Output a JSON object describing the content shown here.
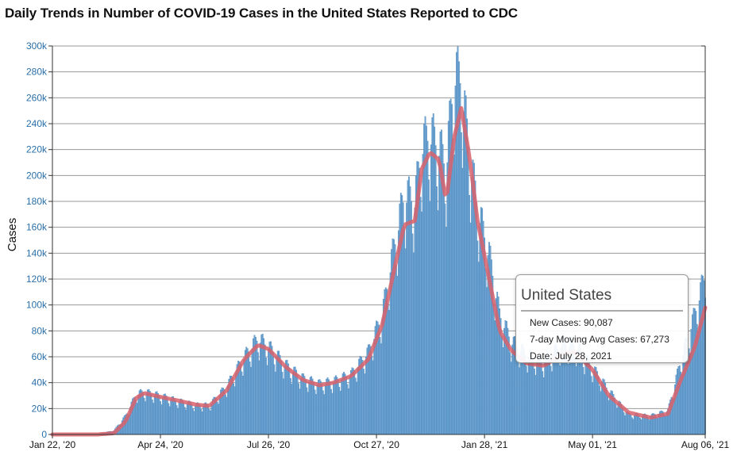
{
  "chart_data": {
    "type": "bar",
    "title": "Daily Trends in Number of COVID-19 Cases in the United States Reported to CDC",
    "ylabel": "Cases",
    "xlabel": "",
    "ylim": [
      0,
      300000
    ],
    "y_ticks": [
      {
        "value": 0,
        "label": "0"
      },
      {
        "value": 20000,
        "label": "20k"
      },
      {
        "value": 40000,
        "label": "40k"
      },
      {
        "value": 60000,
        "label": "60k"
      },
      {
        "value": 80000,
        "label": "80k"
      },
      {
        "value": 100000,
        "label": "100k"
      },
      {
        "value": 120000,
        "label": "120k"
      },
      {
        "value": 140000,
        "label": "140k"
      },
      {
        "value": 160000,
        "label": "160k"
      },
      {
        "value": 180000,
        "label": "180k"
      },
      {
        "value": 200000,
        "label": "200k"
      },
      {
        "value": 220000,
        "label": "220k"
      },
      {
        "value": 240000,
        "label": "240k"
      },
      {
        "value": 260000,
        "label": "260k"
      },
      {
        "value": 280000,
        "label": "280k"
      },
      {
        "value": 300000,
        "label": "300k"
      }
    ],
    "x_range": [
      "2020-01-22",
      "2021-08-06"
    ],
    "x_ticks": [
      {
        "date": "2020-01-22",
        "label": "Jan 22, '20"
      },
      {
        "date": "2020-04-24",
        "label": "Apr 24, '20"
      },
      {
        "date": "2020-07-26",
        "label": "Jul 26, '20"
      },
      {
        "date": "2020-10-27",
        "label": "Oct 27, '20"
      },
      {
        "date": "2021-01-28",
        "label": "Jan 28, '21"
      },
      {
        "date": "2021-05-01",
        "label": "May 01, '21"
      },
      {
        "date": "2021-08-06",
        "label": "Aug 06, '21"
      }
    ],
    "grid": true,
    "colors": {
      "bars": "#6ea4d2",
      "bars_edge": "#3f7fb8",
      "moving_avg": "#d9616b",
      "grid": "#999999"
    },
    "series": [
      {
        "name": "New Cases",
        "kind": "bar",
        "x": [
          "2020-01-22",
          "2020-03-01",
          "2020-03-15",
          "2020-03-25",
          "2020-04-03",
          "2020-04-10",
          "2020-04-24",
          "2020-05-10",
          "2020-05-25",
          "2020-06-05",
          "2020-06-20",
          "2020-07-05",
          "2020-07-17",
          "2020-07-26",
          "2020-08-10",
          "2020-08-25",
          "2020-09-08",
          "2020-09-20",
          "2020-10-05",
          "2020-10-20",
          "2020-11-01",
          "2020-11-10",
          "2020-11-20",
          "2020-11-29",
          "2020-12-05",
          "2020-12-12",
          "2020-12-20",
          "2020-12-26",
          "2021-01-02",
          "2021-01-08",
          "2021-01-15",
          "2021-01-22",
          "2021-02-01",
          "2021-02-10",
          "2021-02-20",
          "2021-03-05",
          "2021-03-20",
          "2021-04-05",
          "2021-04-15",
          "2021-05-01",
          "2021-05-15",
          "2021-06-01",
          "2021-06-20",
          "2021-07-05",
          "2021-07-15",
          "2021-07-28",
          "2021-08-06"
        ],
        "values": [
          0,
          100,
          3000,
          14000,
          30000,
          32000,
          29000,
          25000,
          22000,
          22000,
          36000,
          58000,
          72000,
          66000,
          52000,
          42000,
          38000,
          40000,
          45000,
          62000,
          90000,
          135000,
          180000,
          175000,
          215000,
          225000,
          215000,
          200000,
          270000,
          265000,
          210000,
          170000,
          135000,
          90000,
          70000,
          60000,
          55000,
          68000,
          68000,
          50000,
          33000,
          15000,
          14000,
          18000,
          52000,
          90087,
          120000
        ]
      },
      {
        "name": "7-day Moving Avg Cases",
        "kind": "line",
        "x": [
          "2020-01-22",
          "2020-03-01",
          "2020-03-15",
          "2020-03-25",
          "2020-04-03",
          "2020-04-10",
          "2020-04-24",
          "2020-05-10",
          "2020-05-25",
          "2020-06-05",
          "2020-06-20",
          "2020-07-05",
          "2020-07-17",
          "2020-07-26",
          "2020-08-10",
          "2020-08-25",
          "2020-09-08",
          "2020-09-20",
          "2020-10-05",
          "2020-10-20",
          "2020-11-01",
          "2020-11-10",
          "2020-11-20",
          "2020-11-29",
          "2020-12-05",
          "2020-12-12",
          "2020-12-20",
          "2020-12-26",
          "2021-01-02",
          "2021-01-08",
          "2021-01-15",
          "2021-01-22",
          "2021-02-01",
          "2021-02-10",
          "2021-02-20",
          "2021-03-05",
          "2021-03-20",
          "2021-04-05",
          "2021-04-15",
          "2021-05-01",
          "2021-05-15",
          "2021-06-01",
          "2021-06-20",
          "2021-07-05",
          "2021-07-15",
          "2021-07-28",
          "2021-08-06"
        ],
        "values": [
          0,
          0,
          1000,
          10000,
          28000,
          32000,
          29000,
          26000,
          23000,
          22000,
          34000,
          58000,
          69000,
          66000,
          52000,
          42000,
          38000,
          40000,
          45000,
          58000,
          85000,
          122000,
          162000,
          165000,
          205000,
          218000,
          212000,
          180000,
          230000,
          252000,
          215000,
          165000,
          120000,
          80000,
          65000,
          55000,
          53000,
          62000,
          64000,
          50000,
          30000,
          17000,
          13000,
          16000,
          40000,
          67273,
          98000
        ]
      }
    ]
  },
  "tooltip": {
    "title": "United States",
    "new_cases": "New Cases: 90,087",
    "moving_avg": "7-day Moving Avg Cases: 67,273",
    "date": "Date: July 28, 2021"
  }
}
